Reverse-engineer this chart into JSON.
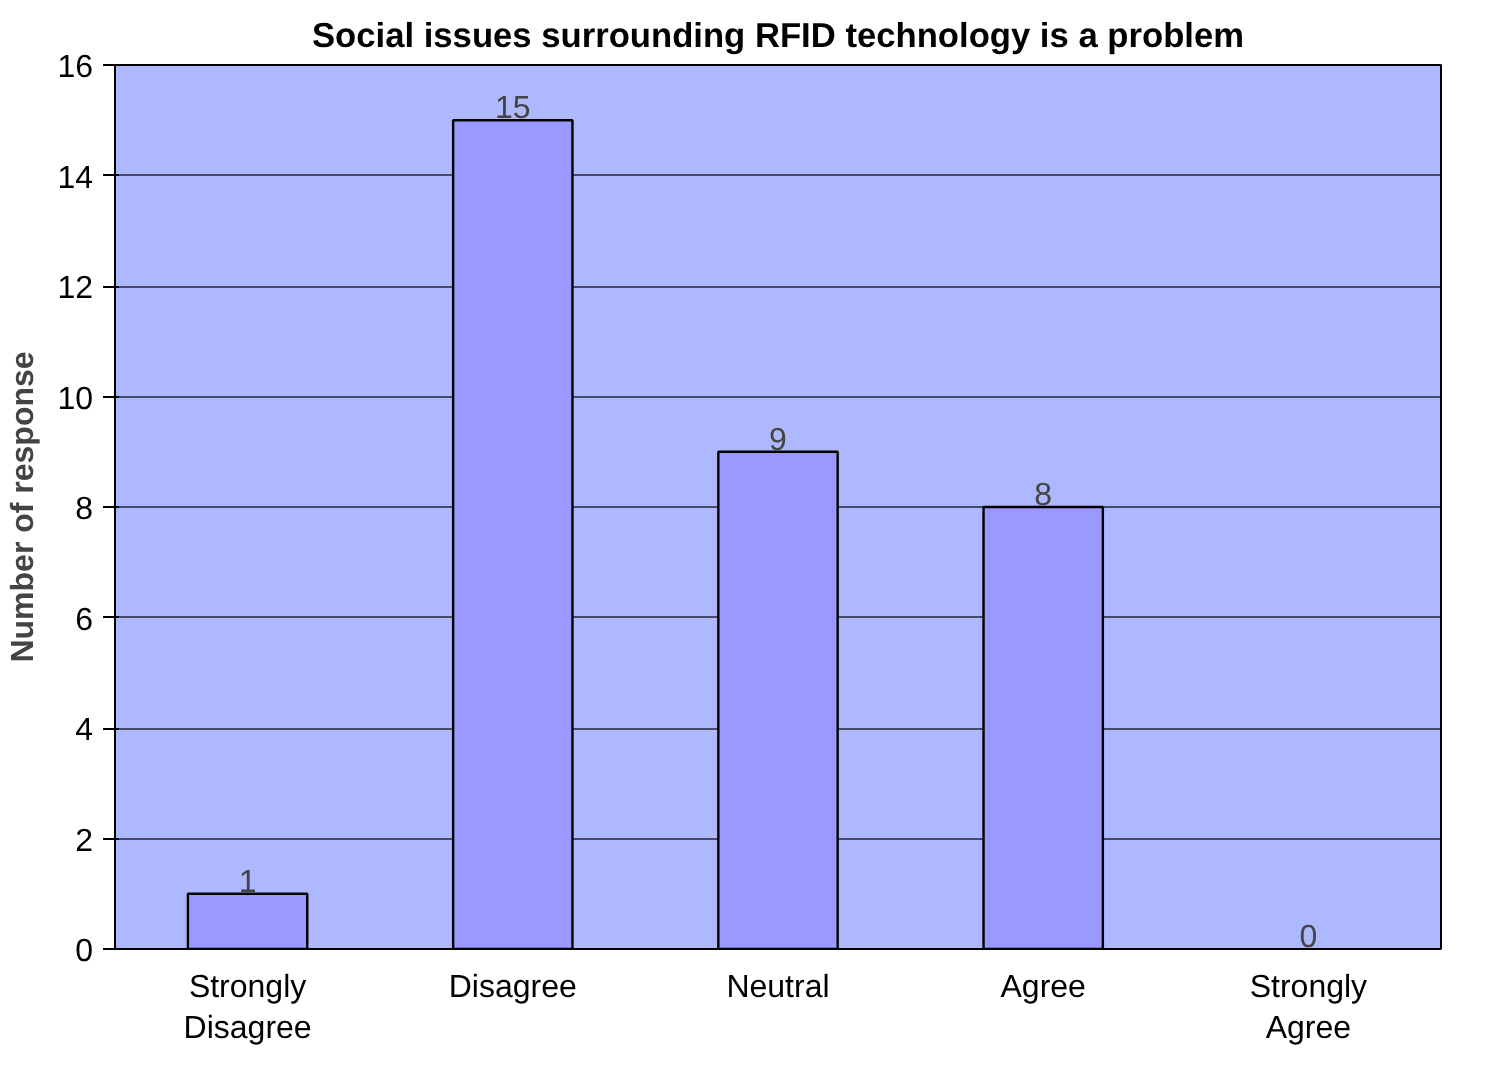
{
  "chart_data": {
    "type": "bar",
    "title": "Social issues surrounding RFID technology is a problem",
    "ylabel": "Number of response",
    "categories": [
      "Strongly Disagree",
      "Disagree",
      "Neutral",
      "Agree",
      "Strongly Agree"
    ],
    "values": [
      1,
      15,
      9,
      8,
      0
    ],
    "color": "#9999ff",
    "ylim": [
      0,
      16
    ],
    "yticks": [
      0,
      2,
      4,
      6,
      8,
      10,
      12,
      14,
      16
    ],
    "grid": "y",
    "data_labels": true
  }
}
